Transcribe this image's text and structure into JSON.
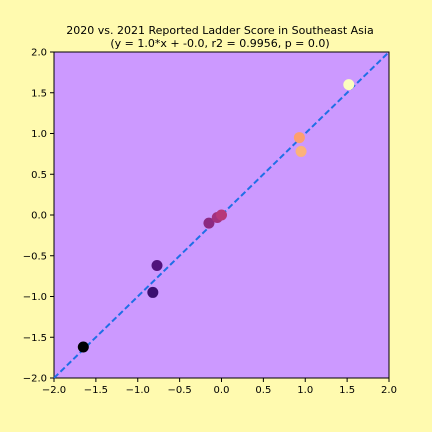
{
  "chart_data": {
    "type": "scatter",
    "title": "2020 vs. 2021 Reported Ladder Score in Southeast Asia",
    "subtitle": "(y = 1.0*x + -0.0, r2 = 0.9956, p = 0.0)",
    "xlabel": "",
    "ylabel": "",
    "xlim": [
      -2.0,
      2.0
    ],
    "ylim": [
      -2.0,
      2.0
    ],
    "xticks": [
      "−2.0",
      "−1.5",
      "−1.0",
      "−0.5",
      "0.0",
      "0.5",
      "1.0",
      "1.5",
      "2.0"
    ],
    "yticks": [
      "−2.0",
      "−1.5",
      "−1.0",
      "−0.5",
      "0.0",
      "0.5",
      "1.0",
      "1.5",
      "2.0"
    ],
    "grid": false,
    "plot_background": "#cc99ff",
    "figure_background": "#fffaaf",
    "fit_line": {
      "slope": 1.0,
      "intercept": 0.0,
      "color": "#1f6fe6",
      "style": "dashed"
    },
    "points": [
      {
        "x": -1.65,
        "y": -1.62,
        "color": "#000004"
      },
      {
        "x": -0.82,
        "y": -0.95,
        "color": "#3b0f70"
      },
      {
        "x": -0.77,
        "y": -0.62,
        "color": "#51127c"
      },
      {
        "x": -0.15,
        "y": -0.1,
        "color": "#8c2981"
      },
      {
        "x": -0.05,
        "y": -0.03,
        "color": "#a3307e"
      },
      {
        "x": 0.0,
        "y": 0.0,
        "color": "#b73779"
      },
      {
        "x": 0.93,
        "y": 0.95,
        "color": "#fe9f6d"
      },
      {
        "x": 0.95,
        "y": 0.78,
        "color": "#fcb27a"
      },
      {
        "x": 1.52,
        "y": 1.6,
        "color": "#fcfdbf"
      }
    ]
  }
}
